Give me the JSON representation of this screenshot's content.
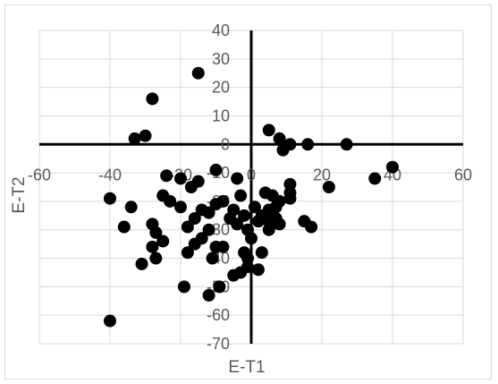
{
  "chart_data": {
    "type": "scatter",
    "xlabel": "E-T1",
    "ylabel": "E-T2",
    "xlim": [
      -60,
      60
    ],
    "ylim": [
      -70,
      40
    ],
    "x_ticks": [
      "-60",
      "-40",
      "-20",
      "0",
      "20",
      "40",
      "60"
    ],
    "y_ticks": [
      "40",
      "30",
      "20",
      "10",
      "0",
      "-10",
      "-20",
      "-30",
      "-40",
      "-50",
      "-60",
      "-70"
    ],
    "grid": true,
    "marker_color": "#000000",
    "points": [
      [
        -15,
        25
      ],
      [
        -28,
        16
      ],
      [
        -33,
        2
      ],
      [
        -30,
        3
      ],
      [
        5,
        5
      ],
      [
        8,
        2
      ],
      [
        11,
        0
      ],
      [
        16,
        0
      ],
      [
        27,
        0
      ],
      [
        9,
        -2
      ],
      [
        40,
        -8
      ],
      [
        35,
        -12
      ],
      [
        22,
        -15
      ],
      [
        11,
        -14
      ],
      [
        11,
        -17
      ],
      [
        11,
        -19
      ],
      [
        -24,
        -11
      ],
      [
        -15,
        -13
      ],
      [
        -10,
        -9
      ],
      [
        -4,
        -12
      ],
      [
        -40,
        -19
      ],
      [
        -25,
        -18
      ],
      [
        -23,
        -20
      ],
      [
        -34,
        -22
      ],
      [
        -36,
        -29
      ],
      [
        -28,
        -28
      ],
      [
        -27,
        -31
      ],
      [
        -25,
        -34
      ],
      [
        -28,
        -36
      ],
      [
        -27,
        -40
      ],
      [
        -31,
        -42
      ],
      [
        -19,
        -50
      ],
      [
        -40,
        -62
      ],
      [
        -12,
        -53
      ],
      [
        -9,
        -50
      ],
      [
        -18,
        -38
      ],
      [
        -16,
        -35
      ],
      [
        -14,
        -33
      ],
      [
        -12,
        -30
      ],
      [
        -10,
        -36
      ],
      [
        -18,
        -29
      ],
      [
        -16,
        -26
      ],
      [
        -14,
        -23
      ],
      [
        -12,
        -24
      ],
      [
        -10,
        -21
      ],
      [
        -8,
        -20
      ],
      [
        -5,
        -23
      ],
      [
        -3,
        -18
      ],
      [
        -2,
        -25
      ],
      [
        -6,
        -26
      ],
      [
        -4,
        -28
      ],
      [
        -1,
        -30
      ],
      [
        0,
        -33
      ],
      [
        -2,
        -38
      ],
      [
        -1,
        -40
      ],
      [
        -8,
        -36
      ],
      [
        -5,
        -46
      ],
      [
        -3,
        -45
      ],
      [
        -1,
        -43
      ],
      [
        2,
        -44
      ],
      [
        -11,
        -40
      ],
      [
        3,
        -38
      ],
      [
        4,
        -17
      ],
      [
        6,
        -18
      ],
      [
        8,
        -20
      ],
      [
        5,
        -23
      ],
      [
        7,
        -22
      ],
      [
        3,
        -25
      ],
      [
        5,
        -27
      ],
      [
        6,
        -24
      ],
      [
        8,
        -28
      ],
      [
        5,
        -30
      ],
      [
        7,
        -26
      ],
      [
        1,
        -22
      ],
      [
        2,
        -27
      ],
      [
        15,
        -27
      ],
      [
        17,
        -29
      ],
      [
        -20,
        -22
      ],
      [
        -20,
        -12
      ],
      [
        -17,
        -15
      ]
    ]
  }
}
